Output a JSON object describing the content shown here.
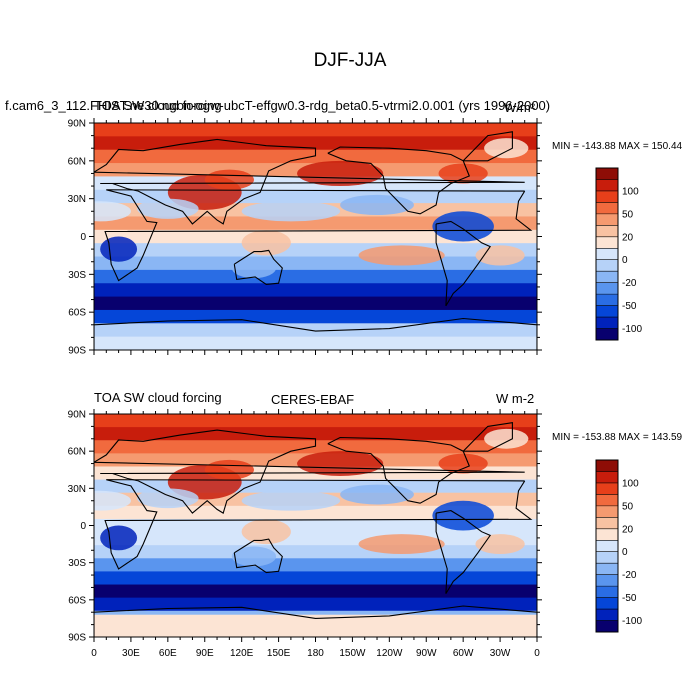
{
  "figure": {
    "title": "DJF-JJA"
  },
  "colorbar": {
    "colors": [
      "#08006e",
      "#0022bb",
      "#0546d8",
      "#2a6de4",
      "#5a95ee",
      "#8ab6f4",
      "#b6d2f8",
      "#d6e6fb",
      "#fce4d4",
      "#f8c2a2",
      "#f59a70",
      "#f16a3e",
      "#e73f1a",
      "#c81d0c",
      "#8e0d06"
    ],
    "labels": [
      "100",
      "50",
      "20",
      "0",
      "-20",
      "-50",
      "-100"
    ]
  },
  "axes": {
    "lat_labels": [
      "90N",
      "60N",
      "30N",
      "0",
      "30S",
      "60S",
      "90S"
    ],
    "lon_labels": [
      "0",
      "30E",
      "60E",
      "90E",
      "120E",
      "150E",
      "180",
      "150W",
      "120W",
      "90W",
      "60W",
      "30W",
      "0"
    ]
  },
  "panels": [
    {
      "left_title": "f.cam6_3_112.FHIST.ne30.ngon-ogw-ubcT-effgw0.3-rdg_beta0.5-vtrmi2.0.001 (yrs 1996-2000)",
      "overlap_title": "TOA SW cloud forcing",
      "center_title": "",
      "units": "W/m²",
      "minmax": "MIN = -143.88 MAX = 150.44"
    },
    {
      "left_title": "TOA SW cloud forcing",
      "overlap_title": "",
      "center_title": "CERES-EBAF",
      "units": "W m-2",
      "minmax": "MIN = -153.88 MAX = 143.59"
    }
  ]
}
